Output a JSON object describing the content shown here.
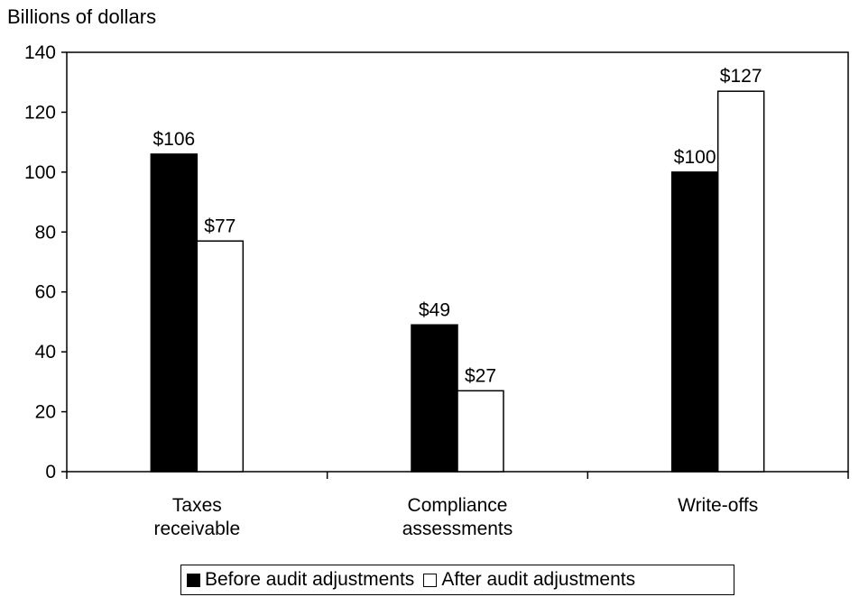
{
  "chart_data": {
    "type": "bar",
    "ylabel": "Billions of dollars",
    "xlabel": "",
    "title": "",
    "categories": [
      [
        "Taxes",
        "receivable"
      ],
      [
        "Compliance",
        "assessments"
      ],
      [
        "Write-offs"
      ]
    ],
    "series": [
      {
        "name": "Before audit adjustments",
        "color": "#000000",
        "values": [
          106,
          49,
          100
        ],
        "labels": [
          "$106",
          "$49",
          "$100"
        ]
      },
      {
        "name": "After audit adjustments",
        "color": "#ffffff",
        "values": [
          77,
          27,
          127
        ],
        "labels": [
          "$77",
          "$27",
          "$127"
        ]
      }
    ],
    "ylim": [
      0,
      140
    ],
    "yticks": [
      0,
      20,
      40,
      60,
      80,
      100,
      120,
      140
    ],
    "grid": false,
    "legend_position": "bottom"
  }
}
